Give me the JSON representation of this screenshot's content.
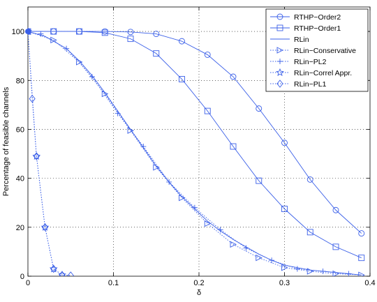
{
  "chart_data": {
    "type": "line",
    "title": "",
    "xlabel": "δ",
    "ylabel": "Percentage of feasible channels",
    "xlim": [
      0,
      0.4
    ],
    "ylim": [
      0,
      110
    ],
    "xticks": [
      0,
      0.1,
      0.2,
      0.3,
      0.4
    ],
    "xtick_labels": [
      "0",
      "0.1",
      "0.2",
      "0.3",
      "0.4"
    ],
    "yticks": [
      0,
      20,
      40,
      60,
      80,
      100
    ],
    "ytick_labels": [
      "0",
      "20",
      "40",
      "60",
      "80",
      "100"
    ],
    "grid": true,
    "legend_position": "top-right",
    "color": "#3a5fe8",
    "series": [
      {
        "name": "RTHP−Order2",
        "style": "solid",
        "marker": "circle",
        "x": [
          0,
          0.03,
          0.06,
          0.09,
          0.12,
          0.15,
          0.18,
          0.21,
          0.24,
          0.27,
          0.3,
          0.33,
          0.36,
          0.39
        ],
        "y": [
          100,
          100,
          100,
          100,
          99.8,
          99,
          96,
          90.5,
          81.5,
          68.5,
          54.5,
          39.5,
          27,
          17.5
        ]
      },
      {
        "name": "RTHP−Order1",
        "style": "solid",
        "marker": "square",
        "x": [
          0,
          0.03,
          0.06,
          0.09,
          0.12,
          0.15,
          0.18,
          0.21,
          0.24,
          0.27,
          0.3,
          0.33,
          0.36,
          0.39
        ],
        "y": [
          100,
          100,
          100,
          99.5,
          97,
          91,
          80.5,
          67.5,
          53,
          39,
          27.5,
          18,
          12,
          7.5
        ]
      },
      {
        "name": "RLin",
        "style": "solid",
        "marker": "none",
        "x": [
          0,
          0.01,
          0.02,
          0.03,
          0.045,
          0.06,
          0.075,
          0.09,
          0.105,
          0.12,
          0.135,
          0.15,
          0.165,
          0.18,
          0.195,
          0.21,
          0.225,
          0.24,
          0.255,
          0.27,
          0.285,
          0.3,
          0.315,
          0.33,
          0.345,
          0.36,
          0.375,
          0.39
        ],
        "y": [
          100,
          99,
          98,
          96,
          93,
          88,
          82,
          75,
          67.5,
          60,
          52.5,
          45,
          38.5,
          32.5,
          27.5,
          22.5,
          18.5,
          15,
          12,
          9,
          6.5,
          4.5,
          3.5,
          2.5,
          2,
          1.5,
          1,
          0.5
        ]
      },
      {
        "name": "RLin−Conservative",
        "style": "dotted",
        "marker": "triangle-right",
        "x": [
          0,
          0.03,
          0.06,
          0.09,
          0.12,
          0.15,
          0.18,
          0.21,
          0.24,
          0.27,
          0.3,
          0.33,
          0.36,
          0.39
        ],
        "y": [
          100,
          96.5,
          87.5,
          74.5,
          59.5,
          44.5,
          32,
          21.5,
          13,
          7.5,
          3.5,
          2,
          1,
          0.5
        ]
      },
      {
        "name": "RLin−PL2",
        "style": "dotted",
        "marker": "plus",
        "x": [
          0.015,
          0.045,
          0.075,
          0.105,
          0.135,
          0.165,
          0.195,
          0.225,
          0.255,
          0.285,
          0.315,
          0.345,
          0.375
        ],
        "y": [
          99,
          93,
          81.5,
          66.5,
          53,
          38.5,
          28,
          19,
          11.5,
          6.5,
          3,
          2,
          1
        ]
      },
      {
        "name": "RLin−Correl Appr.",
        "style": "dotted",
        "marker": "star",
        "x": [
          0,
          0.01,
          0.02,
          0.03,
          0.04
        ],
        "y": [
          100,
          49,
          20,
          3,
          0.5
        ]
      },
      {
        "name": "RLin−PL1",
        "style": "dotted",
        "marker": "diamond",
        "x": [
          0,
          0.005,
          0.01,
          0.02,
          0.03,
          0.04,
          0.05
        ],
        "y": [
          100,
          72.5,
          49,
          20,
          3,
          0.5,
          0.3
        ]
      }
    ]
  }
}
